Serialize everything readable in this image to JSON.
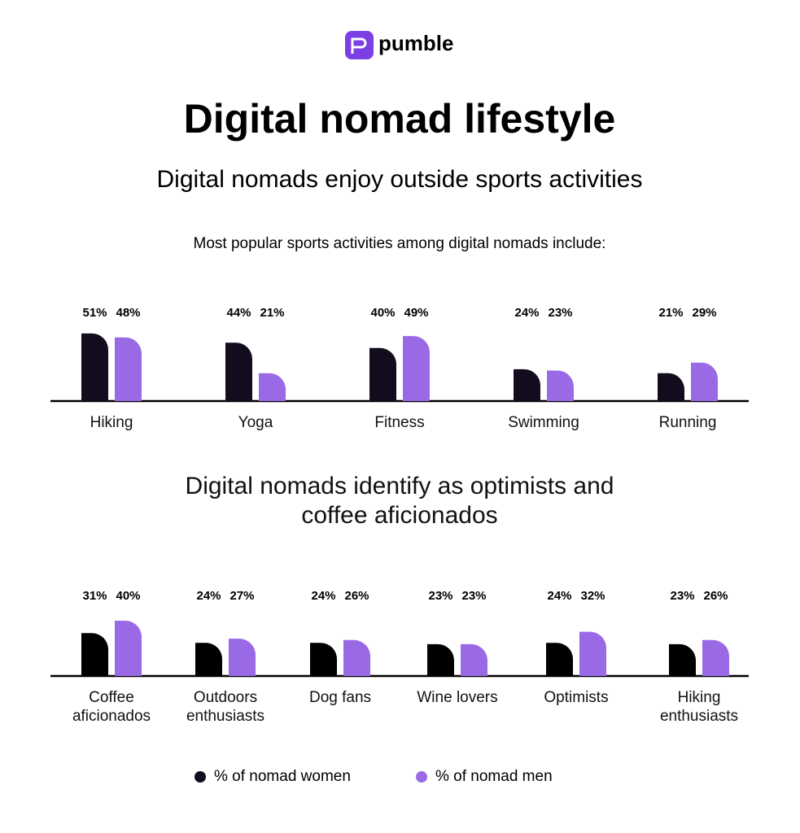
{
  "header": {
    "logo": "pumble",
    "title": "Digital nomad lifestyle"
  },
  "chart_data": [
    {
      "type": "bar",
      "title": "Digital nomads enjoy outside sports activities",
      "subtitle": "Most popular sports activities among digital nomads include:",
      "categories": [
        "Hiking",
        "Yoga",
        "Fitness",
        "Swimming",
        "Running"
      ],
      "series": [
        {
          "name": "% of nomad women",
          "color": "#130c1f",
          "values": [
            51,
            44,
            40,
            24,
            21
          ],
          "value_labels": [
            "51%",
            "44%",
            "40%",
            "24%",
            "21%"
          ]
        },
        {
          "name": "% of nomad men",
          "color": "#9a6ae6",
          "values": [
            48,
            21,
            49,
            23,
            29
          ],
          "value_labels": [
            "48%",
            "21%",
            "49%",
            "23%",
            "29%"
          ]
        }
      ]
    },
    {
      "type": "bar",
      "title": "Digital nomads identify as optimists and coffee aficionados",
      "categories": [
        "Coffee aficionados",
        "Outdoors enthusiasts",
        "Dog fans",
        "Wine lovers",
        "Optimists",
        "Hiking enthusiasts"
      ],
      "series": [
        {
          "color": "#000000",
          "values": [
            31,
            24,
            24,
            23,
            24,
            23
          ],
          "value_labels": [
            "31%",
            "24%",
            "24%",
            "23%",
            "24%",
            "23%"
          ]
        },
        {
          "color": "#9a6ae6",
          "values": [
            40,
            27,
            26,
            23,
            32,
            26
          ],
          "value_labels": [
            "40%",
            "27%",
            "26%",
            "23%",
            "32%",
            "26%"
          ]
        }
      ]
    }
  ]
}
